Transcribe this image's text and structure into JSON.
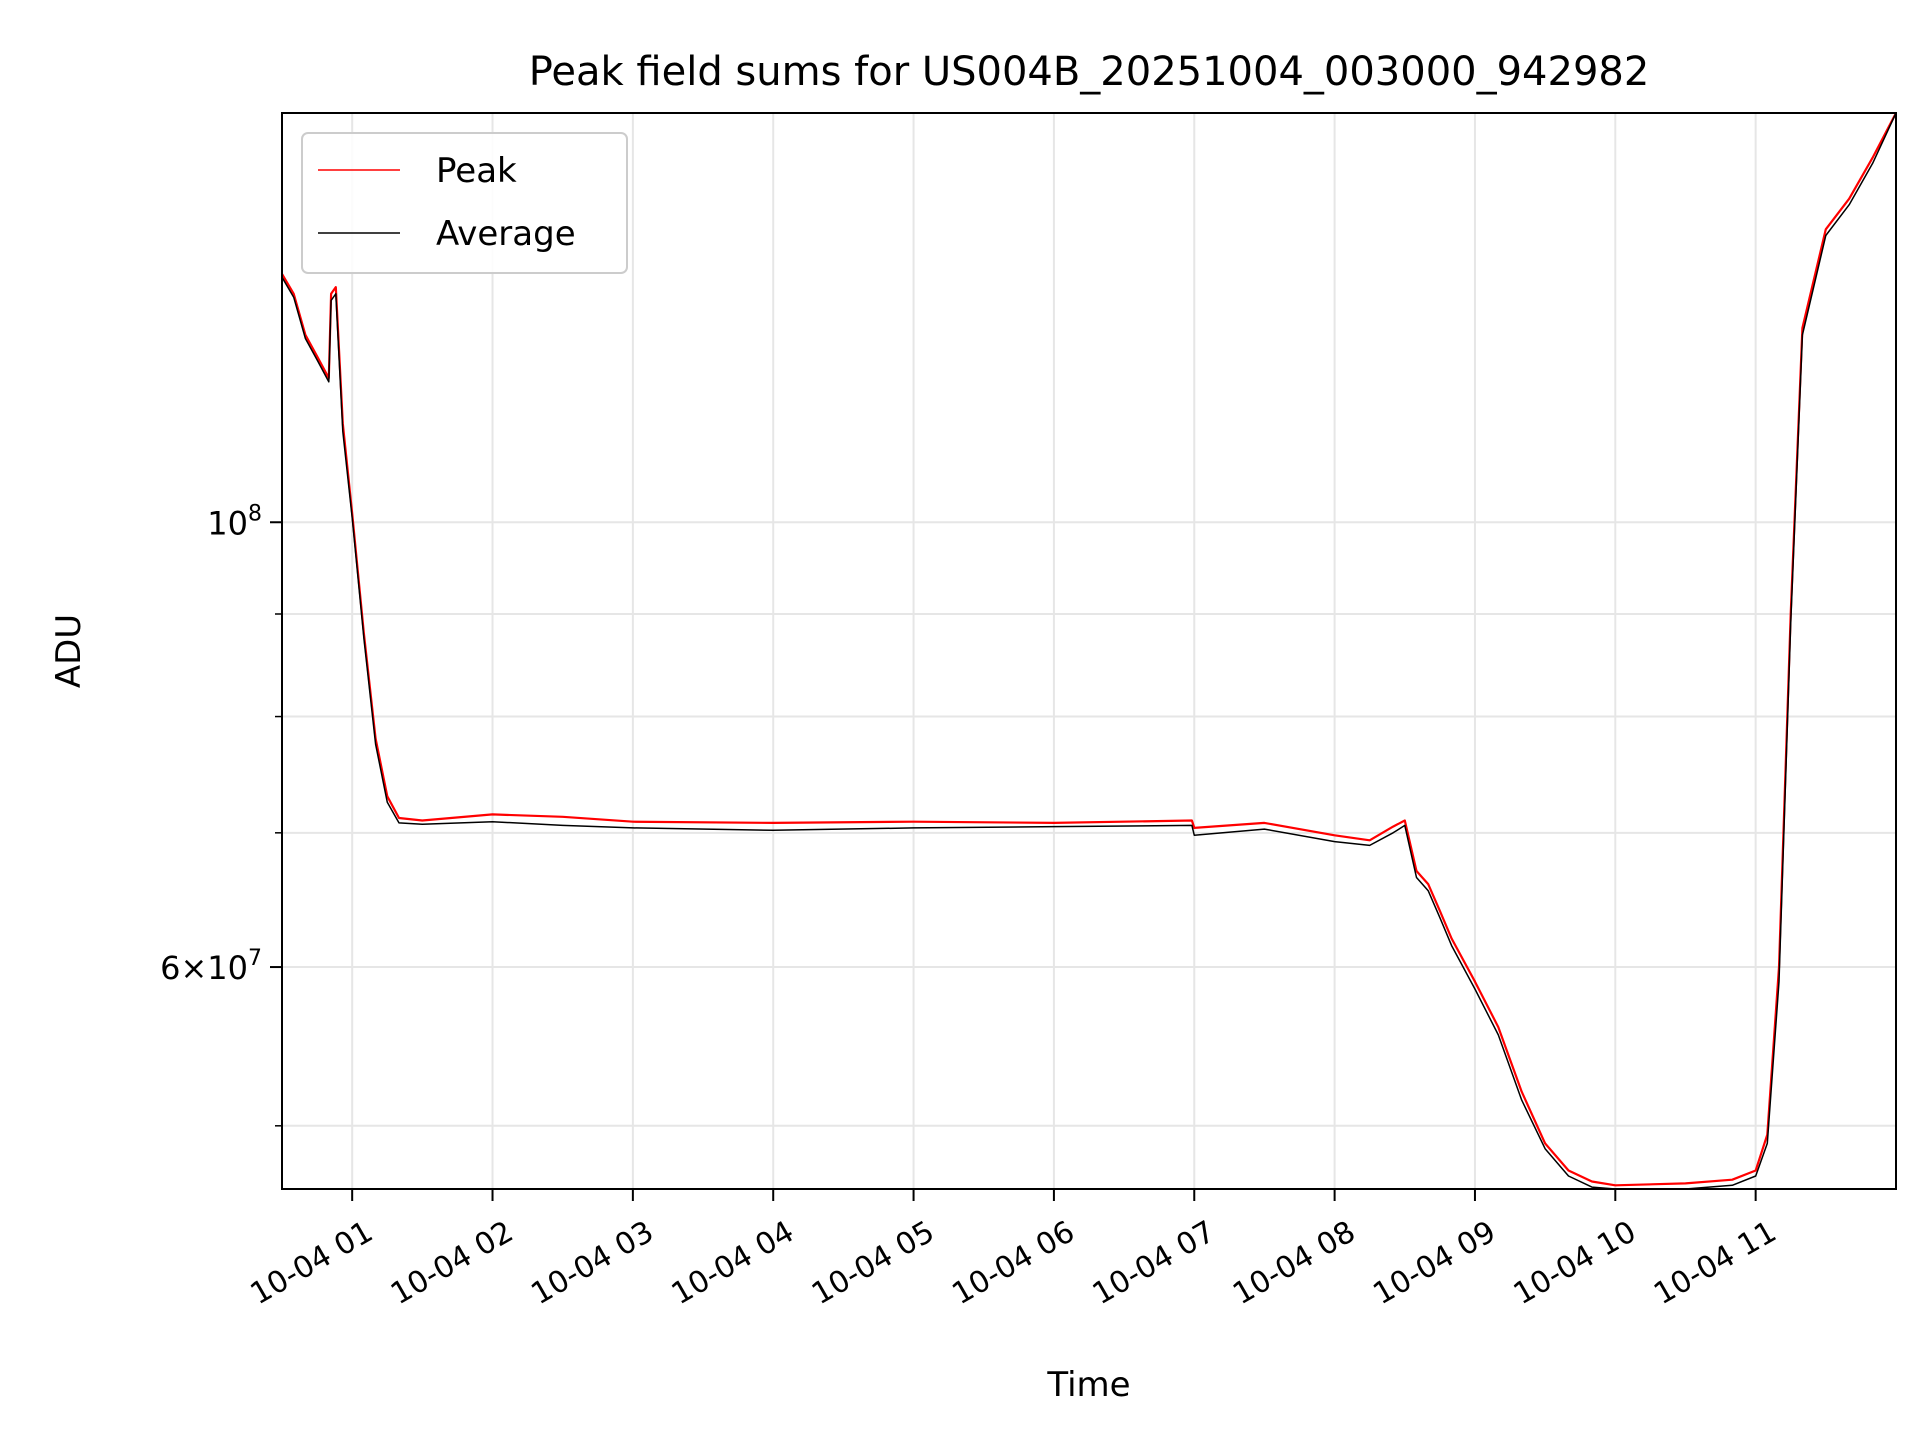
{
  "chart_data": {
    "type": "line",
    "title": "Peak field sums for US004B_20251004_003000_942982",
    "xlabel": "Time",
    "ylabel": "ADU",
    "yscale": "log",
    "xlim": [
      "2025-10-04 00:30",
      "2025-10-04 12:00"
    ],
    "ylim": [
      46500000,
      160000000
    ],
    "grid": true,
    "legend_position": "top-left",
    "x_ticks": [
      {
        "x": "2025-10-04 01:00",
        "label": "10-04 01"
      },
      {
        "x": "2025-10-04 02:00",
        "label": "10-04 02"
      },
      {
        "x": "2025-10-04 03:00",
        "label": "10-04 03"
      },
      {
        "x": "2025-10-04 04:00",
        "label": "10-04 04"
      },
      {
        "x": "2025-10-04 05:00",
        "label": "10-04 05"
      },
      {
        "x": "2025-10-04 06:00",
        "label": "10-04 06"
      },
      {
        "x": "2025-10-04 07:00",
        "label": "10-04 07"
      },
      {
        "x": "2025-10-04 08:00",
        "label": "10-04 08"
      },
      {
        "x": "2025-10-04 09:00",
        "label": "10-04 09"
      },
      {
        "x": "2025-10-04 10:00",
        "label": "10-04 10"
      },
      {
        "x": "2025-10-04 11:00",
        "label": "10-04 11"
      }
    ],
    "y_major_ticks": [
      {
        "value": 60000000,
        "mantissa": "6",
        "exponent": "7"
      },
      {
        "value": 100000000,
        "mantissa": "",
        "exponent": "8"
      }
    ],
    "y_minor_ticks": [
      50000000,
      70000000,
      80000000,
      90000000
    ],
    "series": [
      {
        "name": "Peak",
        "color": "#ff0000",
        "x": [
          "2025-10-04 00:30",
          "2025-10-04 00:35",
          "2025-10-04 00:40",
          "2025-10-04 00:45",
          "2025-10-04 00:50",
          "2025-10-04 00:51",
          "2025-10-04 00:53",
          "2025-10-04 00:56",
          "2025-10-04 01:00",
          "2025-10-04 01:05",
          "2025-10-04 01:10",
          "2025-10-04 01:15",
          "2025-10-04 01:20",
          "2025-10-04 01:30",
          "2025-10-04 02:00",
          "2025-10-04 02:30",
          "2025-10-04 03:00",
          "2025-10-04 04:00",
          "2025-10-04 05:00",
          "2025-10-04 06:00",
          "2025-10-04 06:59",
          "2025-10-04 07:00",
          "2025-10-04 07:30",
          "2025-10-04 08:00",
          "2025-10-04 08:15",
          "2025-10-04 08:25",
          "2025-10-04 08:30",
          "2025-10-04 08:35",
          "2025-10-04 08:40",
          "2025-10-04 08:45",
          "2025-10-04 08:50",
          "2025-10-04 09:00",
          "2025-10-04 09:10",
          "2025-10-04 09:20",
          "2025-10-04 09:30",
          "2025-10-04 09:40",
          "2025-10-04 09:50",
          "2025-10-04 10:00",
          "2025-10-04 10:30",
          "2025-10-04 10:50",
          "2025-10-04 11:00",
          "2025-10-04 11:05",
          "2025-10-04 11:10",
          "2025-10-04 11:15",
          "2025-10-04 11:20",
          "2025-10-04 11:30",
          "2025-10-04 11:40",
          "2025-10-04 11:50",
          "2025-10-04 12:00"
        ],
        "values": [
          133000000,
          130000000,
          124000000,
          121000000,
          118000000,
          130000000,
          131000000,
          112000000,
          101000000,
          88000000,
          78000000,
          73000000,
          71200000,
          71000000,
          71500000,
          71300000,
          70900000,
          70800000,
          70900000,
          70800000,
          71000000,
          70400000,
          70800000,
          69800000,
          69400000,
          70500000,
          71000000,
          67000000,
          66000000,
          64000000,
          62000000,
          59000000,
          56000000,
          52000000,
          49000000,
          47500000,
          46900000,
          46700000,
          46800000,
          47000000,
          47500000,
          49500000,
          60000000,
          90000000,
          125000000,
          140000000,
          145000000,
          152000000,
          160000000
        ]
      },
      {
        "name": "Average",
        "color": "#000000",
        "x": [
          "2025-10-04 00:30",
          "2025-10-04 00:35",
          "2025-10-04 00:40",
          "2025-10-04 00:45",
          "2025-10-04 00:50",
          "2025-10-04 00:51",
          "2025-10-04 00:53",
          "2025-10-04 00:56",
          "2025-10-04 01:00",
          "2025-10-04 01:05",
          "2025-10-04 01:10",
          "2025-10-04 01:15",
          "2025-10-04 01:20",
          "2025-10-04 01:30",
          "2025-10-04 02:00",
          "2025-10-04 02:30",
          "2025-10-04 03:00",
          "2025-10-04 04:00",
          "2025-10-04 05:00",
          "2025-10-04 06:00",
          "2025-10-04 06:59",
          "2025-10-04 07:00",
          "2025-10-04 07:30",
          "2025-10-04 08:00",
          "2025-10-04 08:15",
          "2025-10-04 08:25",
          "2025-10-04 08:30",
          "2025-10-04 08:35",
          "2025-10-04 08:40",
          "2025-10-04 08:45",
          "2025-10-04 08:50",
          "2025-10-04 09:00",
          "2025-10-04 09:10",
          "2025-10-04 09:20",
          "2025-10-04 09:30",
          "2025-10-04 09:40",
          "2025-10-04 09:50",
          "2025-10-04 10:00",
          "2025-10-04 10:30",
          "2025-10-04 10:50",
          "2025-10-04 11:00",
          "2025-10-04 11:05",
          "2025-10-04 11:10",
          "2025-10-04 11:15",
          "2025-10-04 11:20",
          "2025-10-04 11:30",
          "2025-10-04 11:40",
          "2025-10-04 11:50",
          "2025-10-04 12:00"
        ],
        "values": [
          132500000,
          129500000,
          123500000,
          120500000,
          117500000,
          129000000,
          130000000,
          111000000,
          100500000,
          87500000,
          77500000,
          72500000,
          70800000,
          70700000,
          70900000,
          70600000,
          70400000,
          70200000,
          70400000,
          70500000,
          70600000,
          69800000,
          70300000,
          69300000,
          69000000,
          70000000,
          70600000,
          66500000,
          65500000,
          63500000,
          61500000,
          58500000,
          55500000,
          51500000,
          48700000,
          47200000,
          46600000,
          46500000,
          46500000,
          46700000,
          47200000,
          49000000,
          59000000,
          89000000,
          124000000,
          139000000,
          144000000,
          151000000,
          160000000
        ]
      }
    ]
  }
}
